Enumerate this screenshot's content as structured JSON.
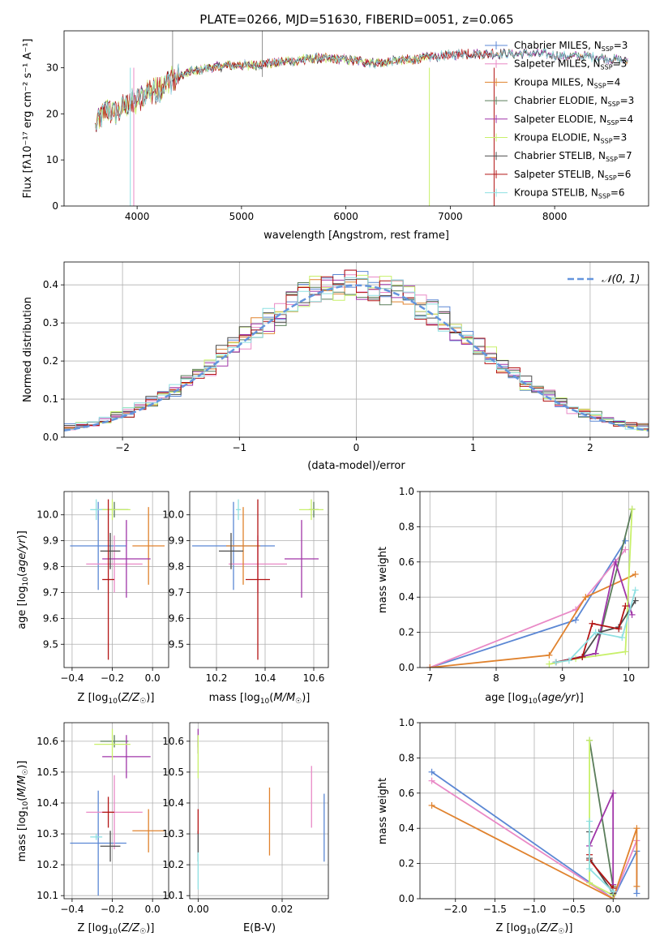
{
  "figure": {
    "title": "PLATE=0266, MJD=51630, FIBERID=0051, z=0.065"
  },
  "colors": {
    "Chabrier MILES": "#5b87d4",
    "Salpeter MILES": "#e989c6",
    "Kroupa MILES": "#e0822d",
    "Chabrier ELODIE": "#5a7d5a",
    "Salpeter ELODIE": "#a035a8",
    "Kroupa ELODIE": "#c8f06a",
    "Chabrier STELIB": "#4c4c4c",
    "Salpeter STELIB": "#b31414",
    "Kroupa STELIB": "#8ee0e2",
    "normal": "#6495dd"
  },
  "legend_spectrum": [
    {
      "name": "Chabrier MILES",
      "label": "Chabrier MILES, N",
      "sub": "SSP",
      "eq": "=3"
    },
    {
      "name": "Salpeter MILES",
      "label": "Salpeter MILES, N",
      "sub": "SSP",
      "eq": "=3"
    },
    {
      "name": "Kroupa MILES",
      "label": "Kroupa MILES, N",
      "sub": "SSP",
      "eq": "=4"
    },
    {
      "name": "Chabrier ELODIE",
      "label": "Chabrier ELODIE, N",
      "sub": "SSP",
      "eq": "=3"
    },
    {
      "name": "Salpeter ELODIE",
      "label": "Salpeter ELODIE, N",
      "sub": "SSP",
      "eq": "=4"
    },
    {
      "name": "Kroupa ELODIE",
      "label": "Kroupa ELODIE, N",
      "sub": "SSP",
      "eq": "=3"
    },
    {
      "name": "Chabrier STELIB",
      "label": "Chabrier STELIB, N",
      "sub": "SSP",
      "eq": "=7"
    },
    {
      "name": "Salpeter STELIB",
      "label": "Salpeter STELIB, N",
      "sub": "SSP",
      "eq": "=6"
    },
    {
      "name": "Kroupa STELIB",
      "label": "Kroupa STELIB, N",
      "sub": "SSP",
      "eq": "=6"
    }
  ],
  "legend_normal": "𝒩(0, 1)",
  "chart_data": [
    {
      "id": "spectrum",
      "type": "line",
      "xlabel": "wavelength [Angstrom, rest frame]",
      "ylabel": "Flux [f",
      "ylabel_full": "Flux [fλ10⁻¹⁷ erg cm⁻² s⁻¹ A⁻¹]",
      "xlim": [
        3300,
        8900
      ],
      "ylim": [
        0,
        38
      ],
      "xticks": [
        4000,
        5000,
        6000,
        7000,
        8000
      ],
      "yticks": [
        0,
        10,
        20,
        30
      ],
      "continuum": [
        [
          3600,
          17
        ],
        [
          3700,
          21
        ],
        [
          3800,
          20
        ],
        [
          3900,
          22
        ],
        [
          4000,
          23
        ],
        [
          4100,
          25
        ],
        [
          4200,
          25
        ],
        [
          4300,
          27
        ],
        [
          4400,
          28
        ],
        [
          4500,
          29
        ],
        [
          4700,
          30
        ],
        [
          4900,
          30.5
        ],
        [
          5100,
          30.5
        ],
        [
          5300,
          31
        ],
        [
          5500,
          31.5
        ],
        [
          5700,
          32
        ],
        [
          5900,
          32
        ],
        [
          6100,
          31.5
        ],
        [
          6300,
          31
        ],
        [
          6500,
          31.5
        ],
        [
          6700,
          32
        ],
        [
          6900,
          32.5
        ],
        [
          7100,
          33
        ],
        [
          7300,
          33
        ],
        [
          7500,
          33
        ],
        [
          7700,
          33
        ],
        [
          7900,
          33
        ],
        [
          8100,
          32.5
        ],
        [
          8300,
          32.5
        ],
        [
          8500,
          32
        ],
        [
          8700,
          31.5
        ]
      ]
    },
    {
      "id": "histogram",
      "type": "histogram",
      "xlabel": "(data-model)/error",
      "ylabel": "Normed distribution",
      "xlim": [
        -2.5,
        2.5
      ],
      "ylim": [
        0,
        0.46
      ],
      "xticks": [
        -2,
        -1,
        0,
        1,
        2
      ],
      "yticks": [
        0.0,
        0.1,
        0.2,
        0.3,
        0.4
      ],
      "bin_width": 0.1,
      "curve": "N(0,1)"
    },
    {
      "id": "age_vs_Z",
      "type": "errorbar",
      "xlabel": "Z [log10(Z/Z☉)]",
      "ylabel": "age [log10(age/yr)]",
      "xlim": [
        -0.44,
        0.08
      ],
      "ylim": [
        9.41,
        10.09
      ],
      "xticks": [
        -0.4,
        -0.2,
        0.0
      ],
      "yticks": [
        9.5,
        9.6,
        9.7,
        9.8,
        9.9,
        10.0
      ],
      "points": [
        {
          "series": "Chabrier MILES",
          "x": -0.27,
          "xerr": 0.14,
          "y": 9.88,
          "yerr": 0.17
        },
        {
          "series": "Salpeter MILES",
          "x": -0.19,
          "xerr": 0.14,
          "y": 9.81,
          "yerr": 0.11
        },
        {
          "series": "Kroupa MILES",
          "x": -0.02,
          "xerr": 0.08,
          "y": 9.88,
          "yerr": 0.15
        },
        {
          "series": "Chabrier ELODIE",
          "x": -0.19,
          "xerr": 0.07,
          "y": 10.02,
          "yerr": 0.03
        },
        {
          "series": "Salpeter ELODIE",
          "x": -0.13,
          "xerr": 0.12,
          "y": 9.83,
          "yerr": 0.15
        },
        {
          "series": "Kroupa ELODIE",
          "x": -0.2,
          "xerr": 0.09,
          "y": 10.02,
          "yerr": 0.04
        },
        {
          "series": "Chabrier STELIB",
          "x": -0.21,
          "xerr": 0.05,
          "y": 9.86,
          "yerr": 0.07
        },
        {
          "series": "Salpeter STELIB",
          "x": -0.22,
          "xerr": 0.03,
          "y": 9.75,
          "yerr": 0.31
        },
        {
          "series": "Kroupa STELIB",
          "x": -0.28,
          "xerr": 0.03,
          "y": 10.02,
          "yerr": 0.04
        }
      ]
    },
    {
      "id": "age_vs_mass",
      "type": "errorbar",
      "xlabel": "mass [log10(M/M☉)]",
      "ylim": [
        9.41,
        10.09
      ],
      "xlim": [
        10.09,
        10.66
      ],
      "xticks": [
        10.2,
        10.4,
        10.6
      ],
      "yticks": [
        9.5,
        9.6,
        9.7,
        9.8,
        9.9,
        10.0
      ],
      "points": [
        {
          "series": "Chabrier MILES",
          "x": 10.27,
          "xerr": 0.17,
          "y": 9.88,
          "yerr": 0.17
        },
        {
          "series": "Salpeter MILES",
          "x": 10.37,
          "xerr": 0.12,
          "y": 9.81,
          "yerr": 0.11
        },
        {
          "series": "Kroupa MILES",
          "x": 10.31,
          "xerr": 0.07,
          "y": 9.88,
          "yerr": 0.15
        },
        {
          "series": "Chabrier ELODIE",
          "x": 10.6,
          "xerr": 0.02,
          "y": 10.02,
          "yerr": 0.03
        },
        {
          "series": "Salpeter ELODIE",
          "x": 10.55,
          "xerr": 0.07,
          "y": 9.83,
          "yerr": 0.15
        },
        {
          "series": "Kroupa ELODIE",
          "x": 10.59,
          "xerr": 0.05,
          "y": 10.02,
          "yerr": 0.04
        },
        {
          "series": "Chabrier STELIB",
          "x": 10.26,
          "xerr": 0.05,
          "y": 9.86,
          "yerr": 0.07
        },
        {
          "series": "Salpeter STELIB",
          "x": 10.37,
          "xerr": 0.05,
          "y": 9.75,
          "yerr": 0.31
        },
        {
          "series": "Kroupa STELIB",
          "x": 10.29,
          "xerr": 0.01,
          "y": 10.02,
          "yerr": 0.04
        }
      ]
    },
    {
      "id": "weight_vs_age",
      "type": "line",
      "xlabel": "age [log10(age/yr)]",
      "ylabel": "mass weight",
      "xlim": [
        6.85,
        10.3
      ],
      "ylim": [
        0,
        1.0
      ],
      "xticks": [
        7,
        8,
        9,
        10
      ],
      "yticks": [
        0.0,
        0.2,
        0.4,
        0.6,
        0.8,
        1.0
      ],
      "series": [
        {
          "name": "Chabrier MILES",
          "x": [
            7.0,
            9.2,
            9.95
          ],
          "y": [
            0.0,
            0.27,
            0.72
          ]
        },
        {
          "name": "Salpeter MILES",
          "x": [
            7.0,
            9.2,
            9.95
          ],
          "y": [
            0.0,
            0.33,
            0.67
          ]
        },
        {
          "name": "Kroupa MILES",
          "x": [
            7.0,
            8.8,
            9.35,
            10.1
          ],
          "y": [
            0.0,
            0.07,
            0.4,
            0.53
          ]
        },
        {
          "name": "Chabrier ELODIE",
          "x": [
            8.9,
            9.5,
            10.05
          ],
          "y": [
            0.03,
            0.08,
            0.9
          ]
        },
        {
          "name": "Salpeter ELODIE",
          "x": [
            8.9,
            9.5,
            9.8,
            10.05
          ],
          "y": [
            0.03,
            0.08,
            0.6,
            0.3
          ]
        },
        {
          "name": "Kroupa ELODIE",
          "x": [
            8.8,
            9.2,
            9.95,
            10.05
          ],
          "y": [
            0.02,
            0.05,
            0.09,
            0.9
          ]
        },
        {
          "name": "Chabrier STELIB",
          "x": [
            8.9,
            9.3,
            9.55,
            9.85,
            10.1
          ],
          "y": [
            0.03,
            0.06,
            0.2,
            0.23,
            0.38
          ]
        },
        {
          "name": "Salpeter STELIB",
          "x": [
            8.9,
            9.3,
            9.45,
            9.85,
            9.95
          ],
          "y": [
            0.03,
            0.06,
            0.25,
            0.22,
            0.35
          ]
        },
        {
          "name": "Kroupa STELIB",
          "x": [
            8.9,
            9.1,
            9.5,
            9.9,
            10.1
          ],
          "y": [
            0.03,
            0.04,
            0.2,
            0.17,
            0.44
          ]
        }
      ]
    },
    {
      "id": "mass_vs_Z",
      "type": "errorbar",
      "xlabel": "Z [log10(Z/Z☉)]",
      "ylabel": "mass [log10(M/M☉)]",
      "xlim": [
        -0.44,
        0.08
      ],
      "ylim": [
        10.09,
        10.66
      ],
      "xticks": [
        -0.4,
        -0.2,
        0.0
      ],
      "yticks": [
        10.1,
        10.2,
        10.3,
        10.4,
        10.5,
        10.6
      ],
      "points": [
        {
          "series": "Chabrier MILES",
          "x": -0.27,
          "xerr": 0.14,
          "y": 10.27,
          "yerr": 0.17
        },
        {
          "series": "Salpeter MILES",
          "x": -0.19,
          "xerr": 0.14,
          "y": 10.37,
          "yerr": 0.12
        },
        {
          "series": "Kroupa MILES",
          "x": -0.02,
          "xerr": 0.08,
          "y": 10.31,
          "yerr": 0.07
        },
        {
          "series": "Chabrier ELODIE",
          "x": -0.19,
          "xerr": 0.07,
          "y": 10.6,
          "yerr": 0.02
        },
        {
          "series": "Salpeter ELODIE",
          "x": -0.13,
          "xerr": 0.12,
          "y": 10.55,
          "yerr": 0.07
        },
        {
          "series": "Kroupa ELODIE",
          "x": -0.2,
          "xerr": 0.09,
          "y": 10.59,
          "yerr": 0.05
        },
        {
          "series": "Chabrier STELIB",
          "x": -0.21,
          "xerr": 0.05,
          "y": 10.26,
          "yerr": 0.05
        },
        {
          "series": "Salpeter STELIB",
          "x": -0.22,
          "xerr": 0.03,
          "y": 10.37,
          "yerr": 0.05
        },
        {
          "series": "Kroupa STELIB",
          "x": -0.28,
          "xerr": 0.03,
          "y": 10.29,
          "yerr": 0.01
        }
      ]
    },
    {
      "id": "mass_vs_EBV",
      "type": "errorbar",
      "xlabel": "E(B-V)",
      "ylim": [
        10.09,
        10.66
      ],
      "xlim": [
        -0.002,
        0.031
      ],
      "xticks": [
        0.0,
        0.02
      ],
      "yticks": [
        10.1,
        10.2,
        10.3,
        10.4,
        10.5,
        10.6
      ],
      "points": [
        {
          "series": "Chabrier MILES",
          "x": 0.03,
          "xerr": 0,
          "y": 10.32,
          "yerr": 0.11
        },
        {
          "series": "Salpeter MILES",
          "x": 0.027,
          "xerr": 0,
          "y": 10.42,
          "yerr": 0.1
        },
        {
          "series": "Kroupa MILES",
          "x": 0.017,
          "xerr": 0,
          "y": 10.34,
          "yerr": 0.11
        },
        {
          "series": "Chabrier ELODIE",
          "x": 0.0,
          "xerr": 0,
          "y": 10.6,
          "yerr": 0.02
        },
        {
          "series": "Salpeter ELODIE",
          "x": 0.0,
          "xerr": 0,
          "y": 10.6,
          "yerr": 0.04
        },
        {
          "series": "Kroupa ELODIE",
          "x": 0.0,
          "xerr": 0,
          "y": 10.55,
          "yerr": 0.07
        },
        {
          "series": "Chabrier STELIB",
          "x": 0.0,
          "xerr": 0,
          "y": 10.26,
          "yerr": 0.05
        },
        {
          "series": "Salpeter STELIB",
          "x": 0.0,
          "xerr": 0,
          "y": 10.34,
          "yerr": 0.04
        },
        {
          "series": "Kroupa STELIB",
          "x": 0.0,
          "xerr": 0,
          "y": 10.18,
          "yerr": 0.06
        }
      ]
    },
    {
      "id": "weight_vs_Z",
      "type": "line",
      "xlabel": "Z [log10(Z/Z☉)]",
      "ylabel": "mass weight",
      "xlim": [
        -2.45,
        0.45
      ],
      "ylim": [
        0,
        1.0
      ],
      "xticks": [
        -2.0,
        -1.5,
        -1.0,
        -0.5,
        0.0
      ],
      "yticks": [
        0.0,
        0.2,
        0.4,
        0.6,
        0.8,
        1.0
      ],
      "series": [
        {
          "name": "Chabrier MILES",
          "x": [
            -2.3,
            0.0,
            0.3,
            0.3
          ],
          "y": [
            0.72,
            0.0,
            0.27,
            0.03
          ]
        },
        {
          "name": "Salpeter MILES",
          "x": [
            -2.3,
            0.0,
            0.3
          ],
          "y": [
            0.67,
            0.0,
            0.33
          ]
        },
        {
          "name": "Kroupa MILES",
          "x": [
            -2.3,
            0.0,
            0.3,
            0.3
          ],
          "y": [
            0.53,
            0.0,
            0.4,
            0.07
          ]
        },
        {
          "name": "Chabrier ELODIE",
          "x": [
            -0.3,
            0.0,
            0.0
          ],
          "y": [
            0.9,
            0.07,
            0.03
          ]
        },
        {
          "name": "Salpeter ELODIE",
          "x": [
            -0.3,
            0.0,
            0.0
          ],
          "y": [
            0.3,
            0.6,
            0.08
          ]
        },
        {
          "name": "Kroupa ELODIE",
          "x": [
            -0.3,
            -0.3,
            0.0
          ],
          "y": [
            0.9,
            0.09,
            0.02
          ]
        },
        {
          "name": "Chabrier STELIB",
          "x": [
            -0.3,
            -0.3,
            0.0,
            0.0
          ],
          "y": [
            0.38,
            0.23,
            0.03,
            0.06
          ]
        },
        {
          "name": "Salpeter STELIB",
          "x": [
            -0.3,
            -0.3,
            0.0
          ],
          "y": [
            0.25,
            0.22,
            0.06
          ]
        },
        {
          "name": "Kroupa STELIB",
          "x": [
            -0.3,
            -0.3,
            0.0
          ],
          "y": [
            0.44,
            0.17,
            0.04
          ]
        }
      ]
    }
  ]
}
